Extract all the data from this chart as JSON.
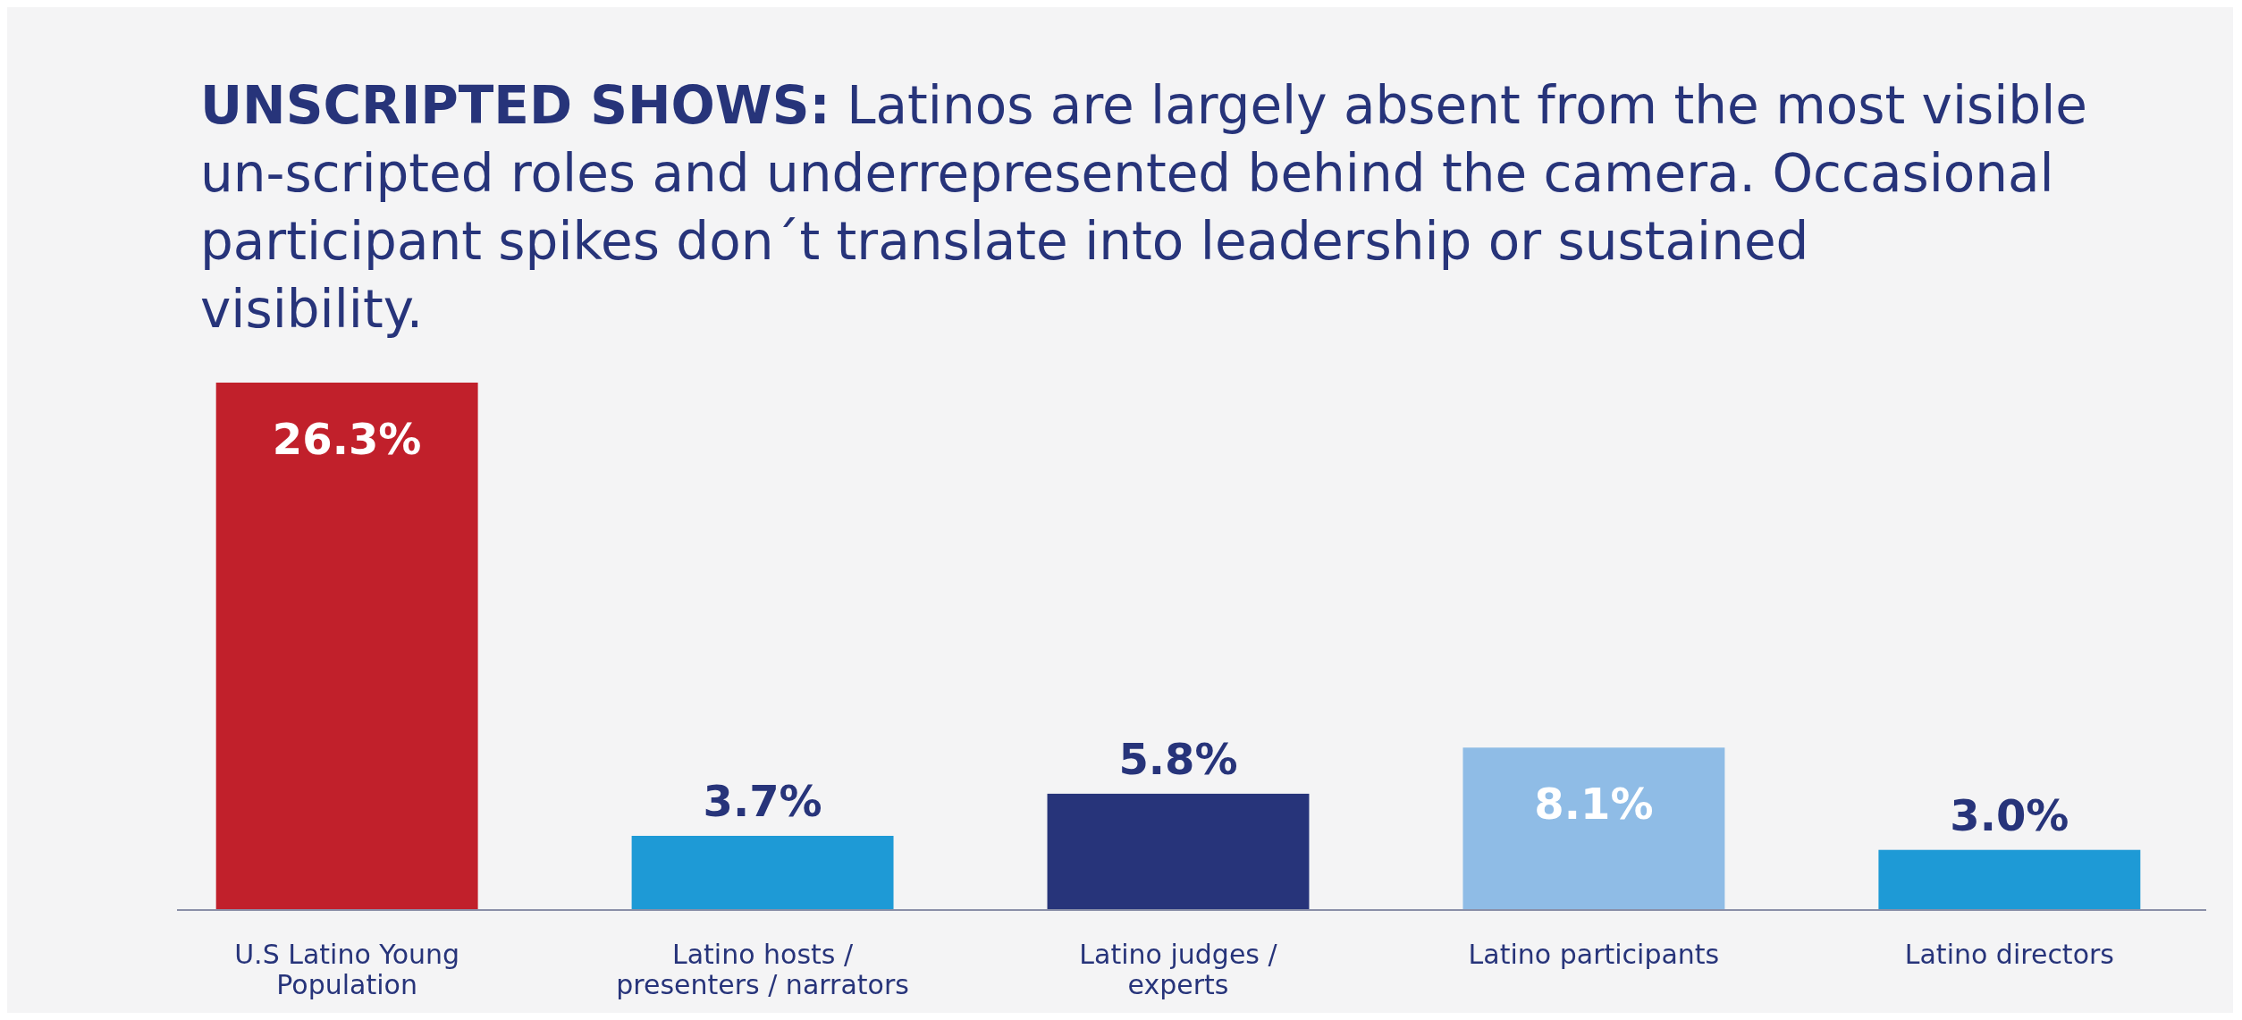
{
  "chart_data": {
    "type": "bar",
    "title": "UNSCRIPTED SHOWS:",
    "subtitle": "Latinos are largely absent from the most visible un-scripted roles and underrepresented behind the camera. Occasional participant spikes don´t translate into leadership or sustained visibility.",
    "categories": [
      "U.S Latino Young Population",
      "Latino hosts / presenters / narrators",
      "Latino judges / experts",
      "Latino participants",
      "Latino directors"
    ],
    "values": [
      26.3,
      3.7,
      5.8,
      8.1,
      3.0
    ],
    "colors": [
      "#c1202b",
      "#1e9ad6",
      "#27347a",
      "#8fbce6",
      "#1e9ad6"
    ],
    "value_labels": [
      "26.3%",
      "3.7%",
      "5.8%",
      "8.1%",
      "3.0%"
    ]
  }
}
